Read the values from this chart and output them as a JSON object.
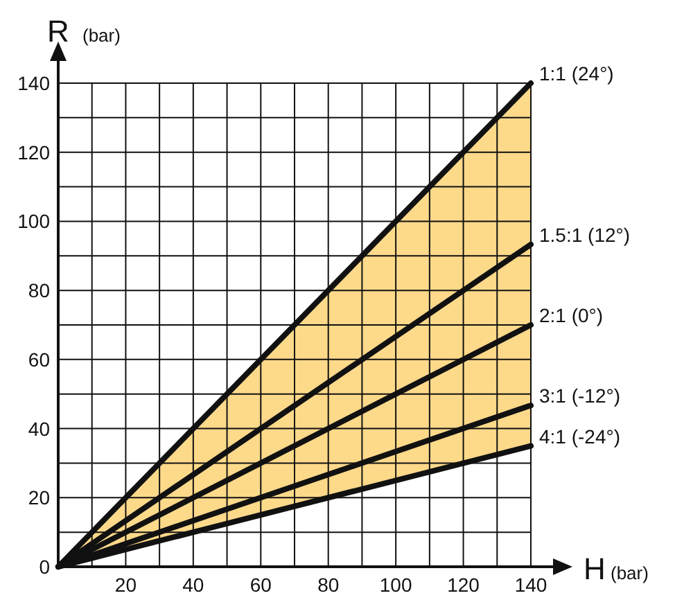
{
  "chart_data": {
    "type": "line",
    "xlabel": "H (bar)",
    "ylabel": "R (bar)",
    "x": [
      0,
      140
    ],
    "xlim": [
      0,
      140
    ],
    "ylim": [
      0,
      140
    ],
    "xticks": [
      {
        "value": 0,
        "label": null
      },
      {
        "value": 10,
        "label": null
      },
      20,
      {
        "value": 30,
        "label": null
      },
      40,
      {
        "value": 50,
        "label": null
      },
      60,
      {
        "value": 70,
        "label": null
      },
      80,
      {
        "value": 90,
        "label": null
      },
      100,
      {
        "value": 110,
        "label": null
      },
      120,
      {
        "value": 130,
        "label": null
      },
      140
    ],
    "yticks": [
      0,
      {
        "value": 10,
        "label": null
      },
      20,
      {
        "value": 30,
        "label": null
      },
      40,
      {
        "value": 50,
        "label": null
      },
      60,
      {
        "value": 70,
        "label": null
      },
      80,
      {
        "value": 90,
        "label": null
      },
      100,
      {
        "value": 110,
        "label": null
      },
      120,
      {
        "value": 130,
        "label": null
      },
      140
    ],
    "grid": true,
    "marker": "none",
    "line_style": "solid",
    "series": [
      {
        "name": "1:1 (24°)",
        "color": "#111111",
        "values": [
          0,
          140
        ],
        "lower": [
          0,
          35
        ],
        "upper": [
          0,
          140
        ]
      },
      {
        "name": "1.5:1 (12°)",
        "color": "#111111",
        "values": [
          0,
          93.3
        ]
      },
      {
        "name": "2:1 (0°)",
        "color": "#111111",
        "values": [
          0,
          70
        ]
      },
      {
        "name": "3:1 (-12°)",
        "color": "#111111",
        "values": [
          0,
          46.7
        ]
      },
      {
        "name": "4:1 (-24°)",
        "color": "#111111",
        "values": [
          0,
          35
        ]
      }
    ]
  }
}
